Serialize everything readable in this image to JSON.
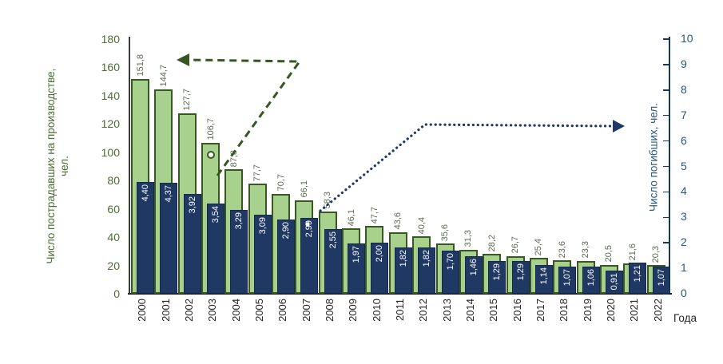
{
  "colors": {
    "injured_fill": "#A9D18E",
    "injured_border": "#385723",
    "fatalities_fill": "#1F3864",
    "fatalities_border": "#14294E",
    "left_axis_text": "#4E6B33",
    "right_axis_text": "#2B5580",
    "green_dark": "#375623",
    "navy_dark": "#1F3864"
  },
  "chart_data": {
    "type": "bar",
    "title": "",
    "xlabel": "Года",
    "categories": [
      "2000",
      "2001",
      "2002",
      "2003",
      "2004",
      "2005",
      "2006",
      "2007",
      "2008",
      "2009",
      "2010",
      "2011",
      "2012",
      "2013",
      "2014",
      "2015",
      "2016",
      "2017",
      "2018",
      "2019",
      "2020",
      "2021",
      "2022"
    ],
    "series": [
      {
        "name": "Число пострадавших на производстве, чел.",
        "axis": "left",
        "color": "#A9D18E",
        "border": "#385723",
        "values": [
          151.8,
          144.7,
          127.7,
          106.7,
          87.8,
          77.7,
          70.7,
          66.1,
          58.3,
          46.1,
          47.7,
          43.6,
          40.4,
          35.6,
          31.3,
          28.2,
          26.7,
          25.4,
          23.6,
          23.3,
          20.5,
          21.6,
          20.3
        ],
        "labels": [
          "151,8",
          "144,7",
          "127,7",
          "106,7",
          "87,8",
          "77,7",
          "70,7",
          "66,1",
          "58,3",
          "46,1",
          "47,7",
          "43,6",
          "40,4",
          "35,6",
          "31,3",
          "28,2",
          "26,7",
          "25,4",
          "23,6",
          "23,3",
          "20,5",
          "21,6",
          "20,3"
        ]
      },
      {
        "name": "Число погибших, чел.",
        "axis": "right",
        "color": "#1F3864",
        "border": "#14294E",
        "values": [
          4.4,
          4.37,
          3.92,
          3.54,
          3.29,
          3.09,
          2.9,
          2.99,
          2.55,
          1.97,
          2.0,
          1.82,
          1.82,
          1.7,
          1.46,
          1.29,
          1.29,
          1.14,
          1.07,
          1.06,
          0.91,
          1.21,
          1.07
        ],
        "labels": [
          "4,40",
          "4,37",
          "3,92",
          "3,54",
          "3,29",
          "3,09",
          "2,90",
          "2,99",
          "2,55",
          "1,97",
          "2,00",
          "1,82",
          "1,82",
          "1,70",
          "1,46",
          "1,29",
          "1,29",
          "1,14",
          "1,07",
          "1,06",
          "0,91",
          "1,21",
          "1,07"
        ]
      }
    ],
    "left_axis": {
      "title_line1": "Число пострадавших на производстве,",
      "title_line2": "чел.",
      "max": 180,
      "ticks": [
        0,
        20,
        40,
        60,
        80,
        100,
        120,
        140,
        160,
        180
      ],
      "grid": false
    },
    "right_axis": {
      "title": "Число погибших, чел.",
      "max": 10,
      "ticks": [
        0,
        1,
        2,
        3,
        4,
        5,
        6,
        7,
        8,
        9,
        10
      ]
    },
    "annotations": {
      "left_pointer": {
        "meaning": "green series refers to left axis",
        "style": "dashed",
        "color": "#375623"
      },
      "right_pointer": {
        "meaning": "blue series refers to right axis",
        "style": "dotted",
        "color": "#1F3864"
      }
    },
    "legend_position": "none"
  }
}
